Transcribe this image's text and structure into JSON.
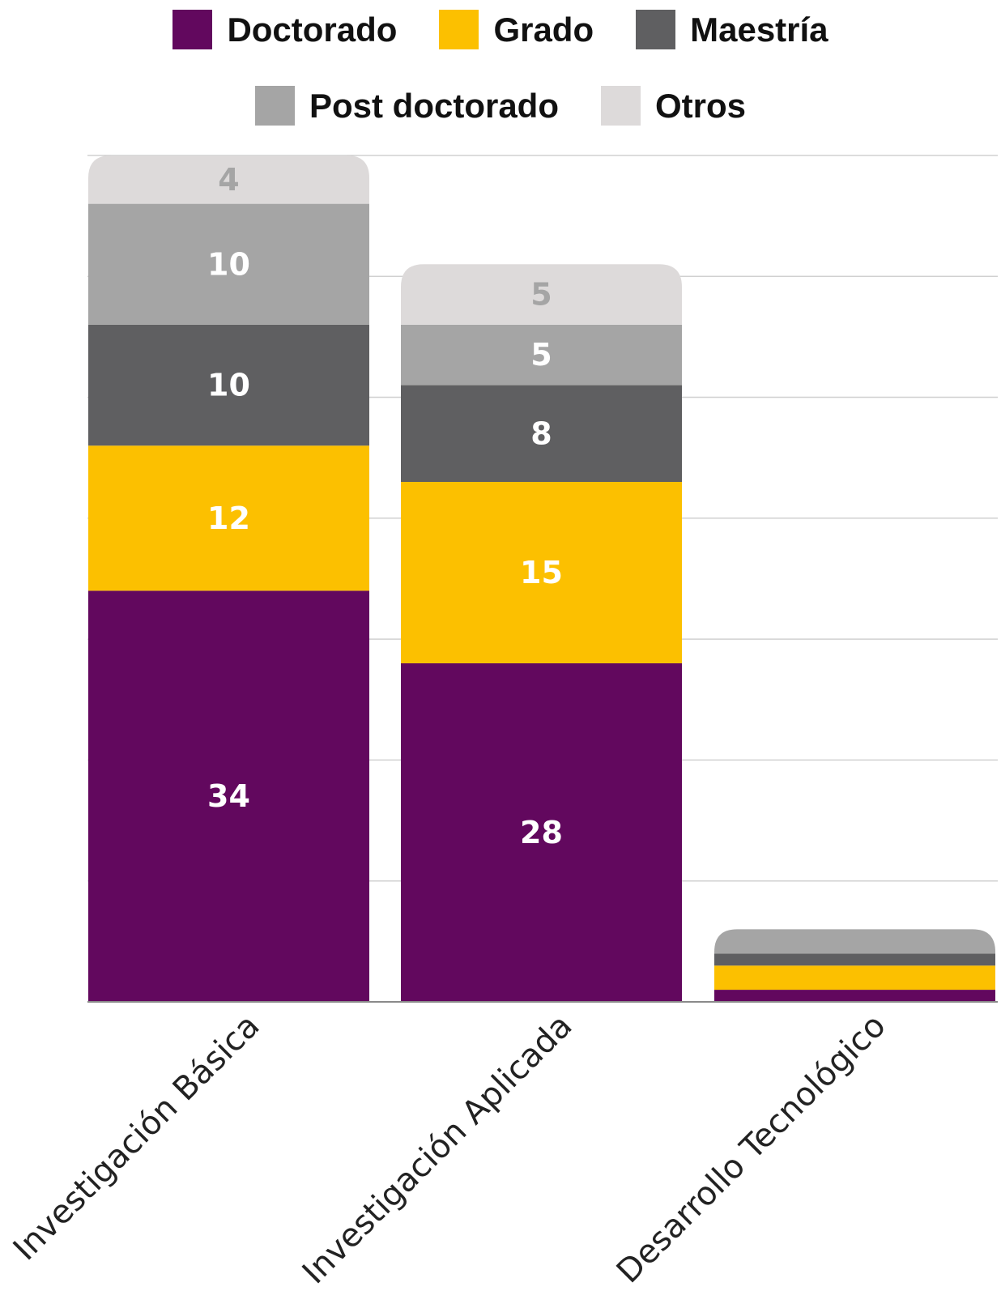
{
  "chart_data": {
    "type": "bar",
    "stacked": true,
    "categories": [
      "Investigación Básica",
      "Investigación Aplicada",
      "Desarrollo Tecnológico"
    ],
    "series": [
      {
        "name": "Doctorado",
        "color": "#62085E",
        "values": [
          34,
          28,
          1
        ]
      },
      {
        "name": "Grado",
        "color": "#FCC000",
        "values": [
          12,
          15,
          2
        ]
      },
      {
        "name": "Maestría",
        "color": "#5F5F61",
        "values": [
          10,
          8,
          1
        ]
      },
      {
        "name": "Post doctorado",
        "color": "#A5A5A5",
        "values": [
          10,
          5,
          2
        ]
      },
      {
        "name": "Otros",
        "color": "#DDDADA",
        "values": [
          4,
          5,
          0
        ]
      }
    ],
    "data_labels": [
      [
        "34",
        "28",
        ""
      ],
      [
        "12",
        "15",
        ""
      ],
      [
        "10",
        "8",
        ""
      ],
      [
        "10",
        "5",
        ""
      ],
      [
        "4",
        "5",
        ""
      ]
    ],
    "label_colors": [
      "#FFFFFF",
      "#FFFFFF",
      "#FFFFFF",
      "#FFFFFF",
      "#A5A5A5"
    ],
    "ylim": [
      0,
      70
    ],
    "grid": true,
    "legend_position": "top",
    "title": "",
    "xlabel": "",
    "ylabel": ""
  }
}
